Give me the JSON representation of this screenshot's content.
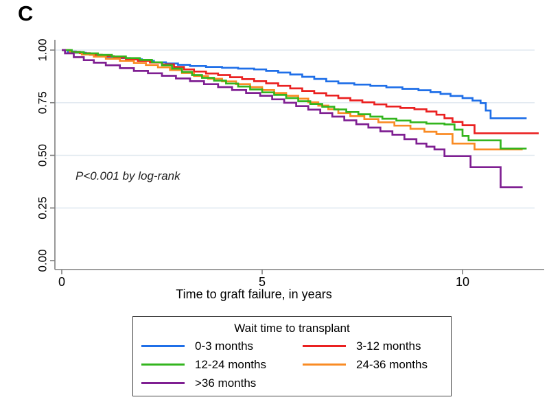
{
  "panel_label": "C",
  "annotation": "P<0.001 by log-rank",
  "chart_data": {
    "type": "line",
    "subtype": "kaplan-meier-step",
    "title": "",
    "xlabel": "Time to graft failure, in years",
    "ylabel": "",
    "xlim": [
      0,
      12
    ],
    "ylim": [
      0.0,
      1.0
    ],
    "xticks": [
      "0",
      "5",
      "10"
    ],
    "yticks": [
      "0.00",
      "0.25",
      "0.50",
      "0.75",
      "1.00"
    ],
    "grid": "horizontal gridlines at 0.25, 0.50, 0.75, 1.00",
    "gridline_color": "#e1e9f0",
    "axis_color": "#7f7f7f",
    "legend_title": "Wait time to transplant",
    "legend_position": "bottom, framed box, 2 columns",
    "series": [
      {
        "name": "0-3 months",
        "color": "#1f6fe8",
        "points": [
          [
            0,
            1.0
          ],
          [
            0.15,
            0.993
          ],
          [
            0.35,
            0.987
          ],
          [
            0.6,
            0.98
          ],
          [
            0.85,
            0.974
          ],
          [
            1.1,
            0.968
          ],
          [
            1.4,
            0.962
          ],
          [
            1.7,
            0.956
          ],
          [
            2.0,
            0.949
          ],
          [
            2.3,
            0.942
          ],
          [
            2.6,
            0.936
          ],
          [
            2.9,
            0.93
          ],
          [
            3.2,
            0.924
          ],
          [
            3.6,
            0.92
          ],
          [
            4.0,
            0.916
          ],
          [
            4.4,
            0.912
          ],
          [
            4.8,
            0.908
          ],
          [
            5.1,
            0.901
          ],
          [
            5.4,
            0.893
          ],
          [
            5.7,
            0.884
          ],
          [
            6.0,
            0.873
          ],
          [
            6.3,
            0.863
          ],
          [
            6.6,
            0.851
          ],
          [
            6.9,
            0.842
          ],
          [
            7.3,
            0.836
          ],
          [
            7.7,
            0.83
          ],
          [
            8.1,
            0.823
          ],
          [
            8.5,
            0.816
          ],
          [
            8.9,
            0.809
          ],
          [
            9.2,
            0.8
          ],
          [
            9.45,
            0.792
          ],
          [
            9.7,
            0.782
          ],
          [
            10.0,
            0.772
          ],
          [
            10.25,
            0.76
          ],
          [
            10.45,
            0.748
          ],
          [
            10.58,
            0.713
          ],
          [
            10.7,
            0.676
          ],
          [
            11.6,
            0.676
          ]
        ]
      },
      {
        "name": "3-12 months",
        "color": "#ea2121",
        "points": [
          [
            0,
            1.0
          ],
          [
            0.2,
            0.992
          ],
          [
            0.45,
            0.985
          ],
          [
            0.7,
            0.978
          ],
          [
            1.0,
            0.971
          ],
          [
            1.3,
            0.964
          ],
          [
            1.6,
            0.956
          ],
          [
            1.9,
            0.949
          ],
          [
            2.2,
            0.941
          ],
          [
            2.5,
            0.932
          ],
          [
            2.8,
            0.92
          ],
          [
            3.05,
            0.908
          ],
          [
            3.3,
            0.898
          ],
          [
            3.6,
            0.889
          ],
          [
            3.9,
            0.881
          ],
          [
            4.2,
            0.871
          ],
          [
            4.5,
            0.862
          ],
          [
            4.8,
            0.852
          ],
          [
            5.1,
            0.842
          ],
          [
            5.4,
            0.83
          ],
          [
            5.7,
            0.818
          ],
          [
            6.0,
            0.806
          ],
          [
            6.3,
            0.795
          ],
          [
            6.6,
            0.784
          ],
          [
            6.9,
            0.772
          ],
          [
            7.2,
            0.761
          ],
          [
            7.5,
            0.752
          ],
          [
            7.8,
            0.742
          ],
          [
            8.1,
            0.732
          ],
          [
            8.45,
            0.725
          ],
          [
            8.8,
            0.719
          ],
          [
            9.1,
            0.708
          ],
          [
            9.35,
            0.693
          ],
          [
            9.55,
            0.676
          ],
          [
            9.75,
            0.659
          ],
          [
            10.0,
            0.643
          ],
          [
            10.3,
            0.605
          ],
          [
            11.9,
            0.605
          ]
        ]
      },
      {
        "name": "12-24 months",
        "color": "#33b51e",
        "points": [
          [
            0,
            1.0
          ],
          [
            0.25,
            0.991
          ],
          [
            0.55,
            0.984
          ],
          [
            0.9,
            0.977
          ],
          [
            1.25,
            0.97
          ],
          [
            1.6,
            0.962
          ],
          [
            1.95,
            0.953
          ],
          [
            2.25,
            0.942
          ],
          [
            2.5,
            0.928
          ],
          [
            2.75,
            0.912
          ],
          [
            3.0,
            0.896
          ],
          [
            3.25,
            0.881
          ],
          [
            3.5,
            0.868
          ],
          [
            3.8,
            0.855
          ],
          [
            4.1,
            0.841
          ],
          [
            4.4,
            0.827
          ],
          [
            4.7,
            0.813
          ],
          [
            5.0,
            0.799
          ],
          [
            5.3,
            0.787
          ],
          [
            5.6,
            0.772
          ],
          [
            5.9,
            0.757
          ],
          [
            6.2,
            0.744
          ],
          [
            6.5,
            0.731
          ],
          [
            6.8,
            0.718
          ],
          [
            7.1,
            0.706
          ],
          [
            7.4,
            0.695
          ],
          [
            7.7,
            0.684
          ],
          [
            8.0,
            0.674
          ],
          [
            8.35,
            0.665
          ],
          [
            8.7,
            0.657
          ],
          [
            9.1,
            0.651
          ],
          [
            9.55,
            0.647
          ],
          [
            9.8,
            0.622
          ],
          [
            10.0,
            0.592
          ],
          [
            10.15,
            0.571
          ],
          [
            10.95,
            0.532
          ],
          [
            11.6,
            0.532
          ]
        ]
      },
      {
        "name": "24-36 months",
        "color": "#f98b24",
        "points": [
          [
            0,
            1.0
          ],
          [
            0.2,
            0.989
          ],
          [
            0.5,
            0.979
          ],
          [
            0.8,
            0.969
          ],
          [
            1.1,
            0.959
          ],
          [
            1.45,
            0.949
          ],
          [
            1.8,
            0.939
          ],
          [
            2.1,
            0.929
          ],
          [
            2.4,
            0.918
          ],
          [
            2.7,
            0.905
          ],
          [
            3.0,
            0.891
          ],
          [
            3.3,
            0.877
          ],
          [
            3.65,
            0.864
          ],
          [
            4.0,
            0.851
          ],
          [
            4.35,
            0.838
          ],
          [
            4.7,
            0.824
          ],
          [
            5.0,
            0.81
          ],
          [
            5.3,
            0.796
          ],
          [
            5.6,
            0.783
          ],
          [
            5.9,
            0.769
          ],
          [
            6.15,
            0.752
          ],
          [
            6.4,
            0.736
          ],
          [
            6.65,
            0.719
          ],
          [
            6.9,
            0.701
          ],
          [
            7.2,
            0.686
          ],
          [
            7.55,
            0.672
          ],
          [
            7.9,
            0.657
          ],
          [
            8.3,
            0.641
          ],
          [
            8.7,
            0.626
          ],
          [
            9.05,
            0.612
          ],
          [
            9.35,
            0.601
          ],
          [
            9.75,
            0.556
          ],
          [
            10.3,
            0.528
          ],
          [
            11.5,
            0.528
          ]
        ]
      },
      {
        "name": ">36 months",
        "color": "#7f1f92",
        "points": [
          [
            0,
            1.0
          ],
          [
            0.08,
            0.984
          ],
          [
            0.3,
            0.966
          ],
          [
            0.55,
            0.952
          ],
          [
            0.8,
            0.94
          ],
          [
            1.1,
            0.928
          ],
          [
            1.45,
            0.914
          ],
          [
            1.8,
            0.901
          ],
          [
            2.15,
            0.89
          ],
          [
            2.5,
            0.878
          ],
          [
            2.85,
            0.865
          ],
          [
            3.2,
            0.852
          ],
          [
            3.55,
            0.838
          ],
          [
            3.9,
            0.824
          ],
          [
            4.25,
            0.81
          ],
          [
            4.6,
            0.796
          ],
          [
            4.95,
            0.783
          ],
          [
            5.25,
            0.766
          ],
          [
            5.55,
            0.75
          ],
          [
            5.85,
            0.734
          ],
          [
            6.15,
            0.717
          ],
          [
            6.45,
            0.701
          ],
          [
            6.75,
            0.684
          ],
          [
            7.05,
            0.666
          ],
          [
            7.35,
            0.648
          ],
          [
            7.65,
            0.632
          ],
          [
            7.95,
            0.614
          ],
          [
            8.25,
            0.598
          ],
          [
            8.55,
            0.577
          ],
          [
            8.85,
            0.556
          ],
          [
            9.1,
            0.541
          ],
          [
            9.3,
            0.528
          ],
          [
            9.55,
            0.496
          ],
          [
            10.2,
            0.444
          ],
          [
            10.95,
            0.349
          ],
          [
            11.5,
            0.349
          ]
        ]
      }
    ]
  }
}
